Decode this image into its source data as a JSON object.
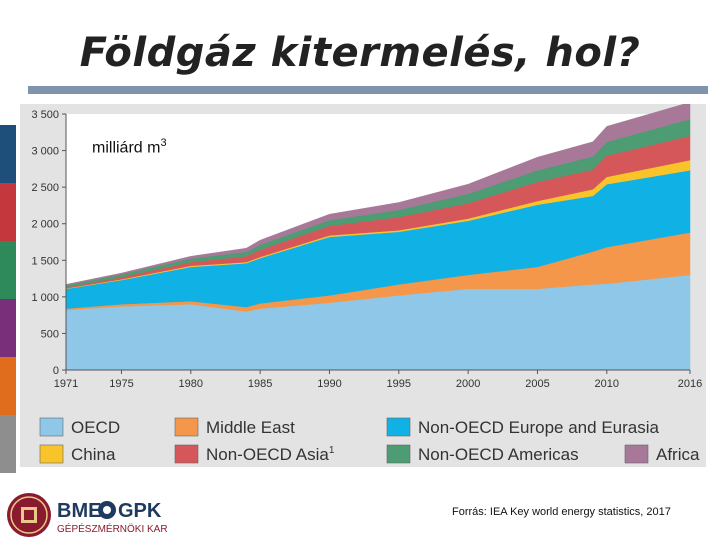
{
  "page": {
    "title": "Földgáz kitermelés, hol?",
    "unit_label": "milliárd m",
    "unit_sup": "3",
    "source": "Forrás: IEA Key world energy statistics, 2017"
  },
  "logo": {
    "name_left": "BME",
    "name_right": "GPK",
    "subtitle": "GÉPÉSZMÉRNÖKI KAR"
  },
  "colors": {
    "OECD": "#8ec7e8",
    "Middle East": "#f4974b",
    "Non-OECD Europe and Eurasia": "#10b2e6",
    "China": "#f9c429",
    "Non-OECD Asia": "#d6575a",
    "Non-OECD Americas": "#4d9c74",
    "Africa": "#a87898",
    "side_strip": [
      "#1d4f7a",
      "#c4373d",
      "#2e8a5a",
      "#7a2f7a",
      "#e06c1e",
      "#8e8e8e"
    ]
  },
  "chart_data": {
    "type": "area",
    "stacked": true,
    "x": [
      1971,
      1975,
      1980,
      1984,
      1985,
      1990,
      1995,
      2000,
      2005,
      2009,
      2010,
      2016
    ],
    "xticks": [
      1971,
      1975,
      1980,
      1985,
      1990,
      1995,
      2000,
      2005,
      2010,
      2016
    ],
    "ylim": [
      0,
      3500
    ],
    "yticks": [
      0,
      500,
      1000,
      1500,
      2000,
      2500,
      3000,
      3500
    ],
    "ytick_labels": [
      "0",
      "500",
      "1 000",
      "1 500",
      "2 000",
      "2 500",
      "3 000",
      "3 500"
    ],
    "series": [
      {
        "name": "OECD",
        "values": [
          820,
          870,
          900,
          800,
          840,
          920,
          1020,
          1110,
          1110,
          1170,
          1180,
          1300
        ]
      },
      {
        "name": "Middle East",
        "values": [
          20,
          30,
          40,
          60,
          70,
          100,
          150,
          190,
          300,
          450,
          500,
          580
        ]
      },
      {
        "name": "Non-OECD Europe and Eurasia",
        "values": [
          270,
          330,
          470,
          600,
          620,
          800,
          720,
          740,
          850,
          760,
          860,
          850
        ]
      },
      {
        "name": "China",
        "values": [
          5,
          10,
          15,
          15,
          15,
          20,
          20,
          30,
          50,
          90,
          100,
          140
        ]
      },
      {
        "name": "Non-OECD Asia",
        "values": [
          15,
          30,
          50,
          80,
          100,
          130,
          180,
          210,
          260,
          270,
          290,
          330
        ]
      },
      {
        "name": "Non-OECD Americas",
        "values": [
          30,
          40,
          50,
          60,
          70,
          80,
          100,
          130,
          160,
          180,
          190,
          230
        ]
      },
      {
        "name": "Africa",
        "values": [
          10,
          15,
          30,
          50,
          60,
          80,
          100,
          130,
          180,
          200,
          210,
          230
        ]
      }
    ],
    "legend": [
      {
        "name": "OECD",
        "label": "OECD",
        "sup": ""
      },
      {
        "name": "China",
        "label": "China",
        "sup": ""
      },
      {
        "name": "Middle East",
        "label": "Middle East",
        "sup": ""
      },
      {
        "name": "Non-OECD Asia",
        "label": "Non-OECD Asia",
        "sup": "1"
      },
      {
        "name": "Non-OECD Europe and Eurasia",
        "label": "Non-OECD Europe and Eurasia",
        "sup": ""
      },
      {
        "name": "Non-OECD Americas",
        "label": "Non-OECD Americas",
        "sup": ""
      },
      {
        "name": "Africa",
        "label": "Africa",
        "sup": ""
      }
    ]
  }
}
